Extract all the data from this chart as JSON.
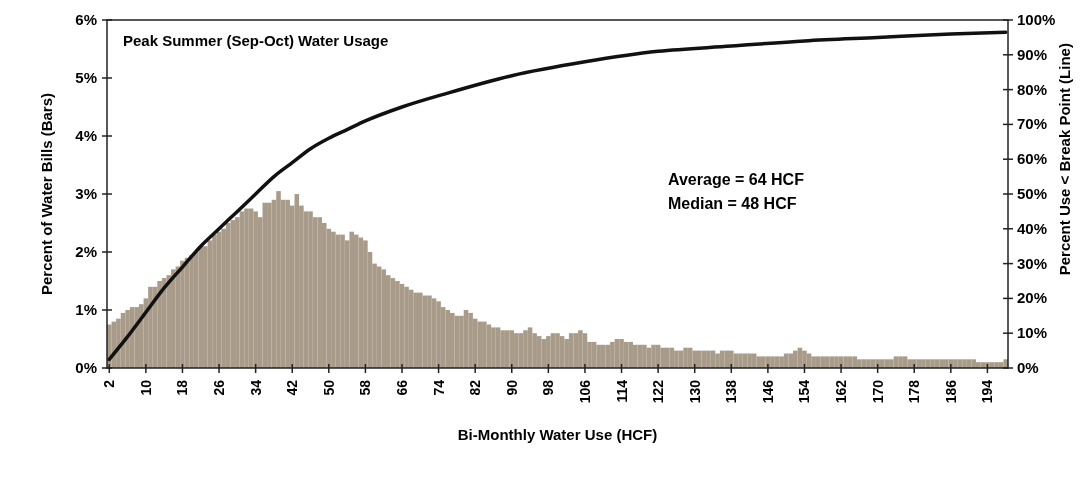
{
  "chart_data": {
    "type": "bar",
    "title": "Peak Summer (Sep-Oct) Water Usage",
    "xlabel": "Bi-Monthly Water Use (HCF)",
    "ylabel": "Percent of Water Bills (Bars)",
    "y2label": "Percent Use < Break Point (Line)",
    "annotations": [
      "Average = 64 HCF",
      "Median = 48 HCF"
    ],
    "x": [
      2,
      3,
      4,
      5,
      6,
      7,
      8,
      9,
      10,
      11,
      12,
      13,
      14,
      15,
      16,
      17,
      18,
      19,
      20,
      21,
      22,
      23,
      24,
      25,
      26,
      27,
      28,
      29,
      30,
      31,
      32,
      33,
      34,
      35,
      36,
      37,
      38,
      39,
      40,
      41,
      42,
      43,
      44,
      45,
      46,
      47,
      48,
      49,
      50,
      51,
      52,
      53,
      54,
      55,
      56,
      57,
      58,
      59,
      60,
      61,
      62,
      63,
      64,
      65,
      66,
      67,
      68,
      69,
      70,
      71,
      72,
      73,
      74,
      75,
      76,
      77,
      78,
      79,
      80,
      81,
      82,
      83,
      84,
      85,
      86,
      87,
      88,
      89,
      90,
      91,
      92,
      93,
      94,
      95,
      96,
      97,
      98,
      99,
      100,
      101,
      102,
      103,
      104,
      105,
      106,
      107,
      108,
      109,
      110,
      111,
      112,
      113,
      114,
      115,
      116,
      117,
      118,
      119,
      120,
      121,
      122,
      123,
      124,
      125,
      126,
      127,
      128,
      129,
      130,
      131,
      132,
      133,
      134,
      135,
      136,
      137,
      138,
      139,
      140,
      141,
      142,
      143,
      144,
      145,
      146,
      147,
      148,
      149,
      150,
      151,
      152,
      153,
      154,
      155,
      156,
      157,
      158,
      159,
      160,
      161,
      162,
      163,
      164,
      165,
      166,
      167,
      168,
      169,
      170,
      171,
      172,
      173,
      174,
      175,
      176,
      177,
      178,
      179,
      180,
      181,
      182,
      183,
      184,
      185,
      186,
      187,
      188,
      189,
      190,
      191,
      192,
      193,
      194,
      195,
      196,
      197,
      198
    ],
    "series": [
      {
        "color": "#a99b89",
        "values": [
          0.75,
          0.8,
          0.85,
          0.95,
          1.0,
          1.05,
          1.05,
          1.1,
          1.2,
          1.4,
          1.4,
          1.5,
          1.55,
          1.6,
          1.7,
          1.75,
          1.85,
          1.9,
          1.95,
          2.0,
          2.1,
          2.1,
          2.2,
          2.3,
          2.35,
          2.4,
          2.5,
          2.55,
          2.6,
          2.7,
          2.75,
          2.75,
          2.7,
          2.6,
          2.85,
          2.85,
          2.9,
          3.05,
          2.9,
          2.9,
          2.8,
          3.0,
          2.8,
          2.7,
          2.7,
          2.6,
          2.6,
          2.5,
          2.4,
          2.35,
          2.3,
          2.3,
          2.2,
          2.35,
          2.3,
          2.25,
          2.2,
          2.0,
          1.8,
          1.75,
          1.7,
          1.6,
          1.55,
          1.5,
          1.45,
          1.4,
          1.35,
          1.3,
          1.3,
          1.25,
          1.25,
          1.2,
          1.15,
          1.05,
          1.0,
          0.95,
          0.9,
          0.9,
          1.0,
          0.95,
          0.85,
          0.8,
          0.8,
          0.75,
          0.7,
          0.7,
          0.65,
          0.65,
          0.65,
          0.6,
          0.6,
          0.65,
          0.7,
          0.6,
          0.55,
          0.5,
          0.55,
          0.6,
          0.6,
          0.55,
          0.5,
          0.6,
          0.6,
          0.65,
          0.6,
          0.45,
          0.45,
          0.4,
          0.4,
          0.4,
          0.45,
          0.5,
          0.5,
          0.45,
          0.45,
          0.4,
          0.4,
          0.4,
          0.35,
          0.4,
          0.4,
          0.35,
          0.35,
          0.35,
          0.3,
          0.3,
          0.35,
          0.35,
          0.3,
          0.3,
          0.3,
          0.3,
          0.3,
          0.25,
          0.3,
          0.3,
          0.3,
          0.25,
          0.25,
          0.25,
          0.25,
          0.25,
          0.2,
          0.2,
          0.2,
          0.2,
          0.2,
          0.2,
          0.25,
          0.25,
          0.3,
          0.35,
          0.3,
          0.25,
          0.2,
          0.2,
          0.2,
          0.2,
          0.2,
          0.2,
          0.2,
          0.2,
          0.2,
          0.2,
          0.15,
          0.15,
          0.15,
          0.15,
          0.15,
          0.15,
          0.15,
          0.15,
          0.2,
          0.2,
          0.2,
          0.15,
          0.15,
          0.15,
          0.15,
          0.15,
          0.15,
          0.15,
          0.15,
          0.15,
          0.15,
          0.15,
          0.15,
          0.15,
          0.15,
          0.15,
          0.1,
          0.1,
          0.1,
          0.1,
          0.1,
          0.1,
          0.15
        ]
      },
      {
        "type": "line",
        "axis": "y2",
        "color": "#111111",
        "x": [
          2,
          6,
          10,
          14,
          18,
          22,
          26,
          30,
          34,
          38,
          42,
          46,
          50,
          54,
          58,
          66,
          76,
          90,
          106,
          122,
          138,
          154,
          170,
          186,
          198
        ],
        "values": [
          2.5,
          9,
          16,
          23,
          29,
          35,
          40,
          45,
          50,
          55,
          59,
          63,
          66,
          68.5,
          71,
          75,
          79,
          84,
          88,
          91,
          92.5,
          94,
          95,
          96,
          96.5
        ]
      }
    ],
    "xlim": [
      1.5,
      198.5
    ],
    "xticks": [
      2,
      10,
      18,
      26,
      34,
      42,
      50,
      58,
      66,
      74,
      82,
      90,
      98,
      106,
      114,
      122,
      130,
      138,
      146,
      154,
      162,
      170,
      178,
      186,
      194
    ],
    "ylim": [
      0,
      6
    ],
    "yticks": [
      {
        "value": 0,
        "label": "0%"
      },
      {
        "value": 1,
        "label": "1%"
      },
      {
        "value": 2,
        "label": "2%"
      },
      {
        "value": 3,
        "label": "3%"
      },
      {
        "value": 4,
        "label": "4%"
      },
      {
        "value": 5,
        "label": "5%"
      },
      {
        "value": 6,
        "label": "6%"
      }
    ],
    "y2lim": [
      0,
      100
    ],
    "y2ticks": [
      {
        "value": 0,
        "label": "0%"
      },
      {
        "value": 10,
        "label": "10%"
      },
      {
        "value": 20,
        "label": "20%"
      },
      {
        "value": 30,
        "label": "30%"
      },
      {
        "value": 40,
        "label": "40%"
      },
      {
        "value": 50,
        "label": "50%"
      },
      {
        "value": 60,
        "label": "60%"
      },
      {
        "value": 70,
        "label": "70%"
      },
      {
        "value": 80,
        "label": "80%"
      },
      {
        "value": 90,
        "label": "90%"
      },
      {
        "value": 100,
        "label": "100%"
      }
    ],
    "grid": false,
    "marker": "none",
    "line_style": "solid"
  }
}
